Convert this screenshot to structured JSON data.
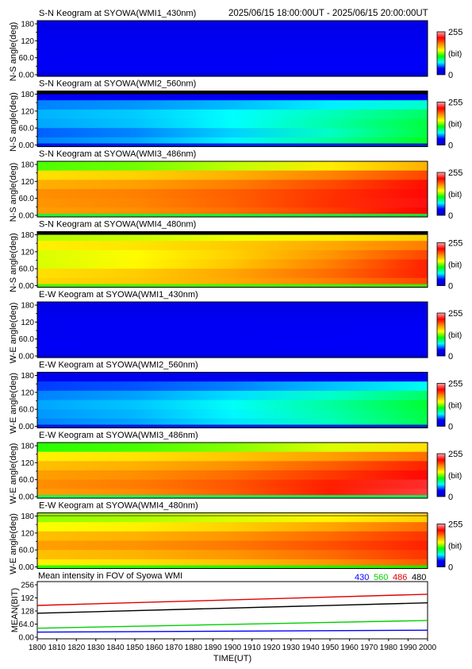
{
  "header": {
    "time_range": "2025/06/15 18:00:00UT - 2025/06/15 20:00:00UT"
  },
  "colorbar": {
    "max_label": "255",
    "unit_label": "(bit)",
    "min_label": "0",
    "stops": [
      "#0000cc",
      "#0000ff",
      "#00ffff",
      "#00ff00",
      "#ffff00",
      "#ff8800",
      "#ff0000",
      "#ffaaaa"
    ]
  },
  "panels": [
    {
      "title": "S-N Keogram at SYOWA(WMI1_430nm)",
      "ylabel": "N-S angle(deg)",
      "ytick_labels": [
        "180",
        "120",
        "60.0",
        "0.00"
      ],
      "intensity_min": 0,
      "intensity_max": 255,
      "top_band": "none",
      "left_values": [
        20,
        25,
        28,
        28,
        30,
        28
      ],
      "right_values": [
        20,
        25,
        28,
        30,
        32,
        30
      ]
    },
    {
      "title": "S-N Keogram at SYOWA(WMI2_560nm)",
      "ylabel": "N-S angle(deg)",
      "ytick_labels": [
        "180",
        "120",
        "60.0",
        "0.00"
      ],
      "intensity_min": 0,
      "intensity_max": 255,
      "top_band": "dark",
      "left_values": [
        30,
        55,
        62,
        60,
        50,
        55
      ],
      "right_values": [
        25,
        80,
        95,
        100,
        100,
        105
      ]
    },
    {
      "title": "S-N Keogram at SYOWA(WMI3_486nm)",
      "ylabel": "N-S angle(deg)",
      "ytick_labels": [
        "180",
        "120",
        "60.0",
        "0.00"
      ],
      "intensity_min": 0,
      "intensity_max": 255,
      "top_band": "none",
      "left_values": [
        120,
        155,
        170,
        180,
        178,
        175
      ],
      "right_values": [
        170,
        200,
        215,
        220,
        222,
        218
      ]
    },
    {
      "title": "S-N Keogram at SYOWA(WMI4_480nm)",
      "ylabel": "N-S angle(deg)",
      "ytick_labels": [
        "180",
        "120",
        "60.0",
        "0.00"
      ],
      "intensity_min": 0,
      "intensity_max": 255,
      "top_band": "dark",
      "left_values": [
        135,
        150,
        140,
        140,
        155,
        158
      ],
      "right_values": [
        160,
        185,
        200,
        210,
        210,
        200
      ]
    },
    {
      "title": "E-W Keogram at SYOWA(WMI1_430nm)",
      "ylabel": "W-E angle(deg)",
      "ytick_labels": [
        "180",
        "120",
        "60.0",
        "0.00"
      ],
      "intensity_min": 0,
      "intensity_max": 255,
      "top_band": "none",
      "left_values": [
        20,
        26,
        28,
        28,
        30,
        28
      ],
      "right_values": [
        20,
        26,
        30,
        32,
        32,
        30
      ]
    },
    {
      "title": "E-W Keogram at SYOWA(WMI2_560nm)",
      "ylabel": "W-E angle(deg)",
      "ytick_labels": [
        "180",
        "120",
        "60.0",
        "0.00"
      ],
      "intensity_min": 0,
      "intensity_max": 255,
      "top_band": "none",
      "left_values": [
        25,
        45,
        55,
        60,
        58,
        55
      ],
      "right_values": [
        25,
        75,
        95,
        102,
        100,
        98
      ]
    },
    {
      "title": "E-W Keogram at SYOWA(WMI3_486nm)",
      "ylabel": "W-E angle(deg)",
      "ytick_labels": [
        "180",
        "120",
        "60.0",
        "0.00"
      ],
      "intensity_min": 0,
      "intensity_max": 255,
      "top_band": "none",
      "left_values": [
        115,
        150,
        165,
        175,
        180,
        175
      ],
      "right_values": [
        155,
        190,
        210,
        220,
        228,
        232
      ]
    },
    {
      "title": "E-W Keogram at SYOWA(WMI4_480nm)",
      "ylabel": "W-E angle(deg)",
      "ytick_labels": [
        "180",
        "120",
        "60.0",
        "0.00"
      ],
      "intensity_min": 0,
      "intensity_max": 255,
      "top_band": "line",
      "left_values": [
        130,
        145,
        165,
        175,
        165,
        150
      ],
      "right_values": [
        160,
        190,
        205,
        210,
        205,
        195
      ]
    }
  ],
  "chart_data": {
    "type": "line",
    "title": "Mean intensity in FOV of Syowa WMI",
    "xlabel": "TIME(UT)",
    "ylabel": "MEAN(BIT)",
    "x": [
      1800,
      2000
    ],
    "xlim": [
      1800,
      2000
    ],
    "ylim": [
      0,
      256
    ],
    "x_tick_labels": [
      "1800",
      "1810",
      "1820",
      "1830",
      "1840",
      "1850",
      "1860",
      "1870",
      "1880",
      "1890",
      "1900",
      "1910",
      "1920",
      "1930",
      "1940",
      "1950",
      "1960",
      "1970",
      "1980",
      "1990",
      "2000"
    ],
    "y_tick_labels": [
      "256",
      "192",
      "128",
      "64.0",
      "0.00"
    ],
    "y_tick_values": [
      256,
      192,
      128,
      64,
      0
    ],
    "series": [
      {
        "name": "430",
        "color": "#0000ff",
        "values": [
          25,
          34
        ]
      },
      {
        "name": "560",
        "color": "#00d000",
        "values": [
          44,
          82
        ]
      },
      {
        "name": "486",
        "color": "#e00000",
        "values": [
          155,
          210
        ]
      },
      {
        "name": "480",
        "color": "#000000",
        "values": [
          117,
          168
        ]
      }
    ],
    "legend_placement": "top-right"
  }
}
